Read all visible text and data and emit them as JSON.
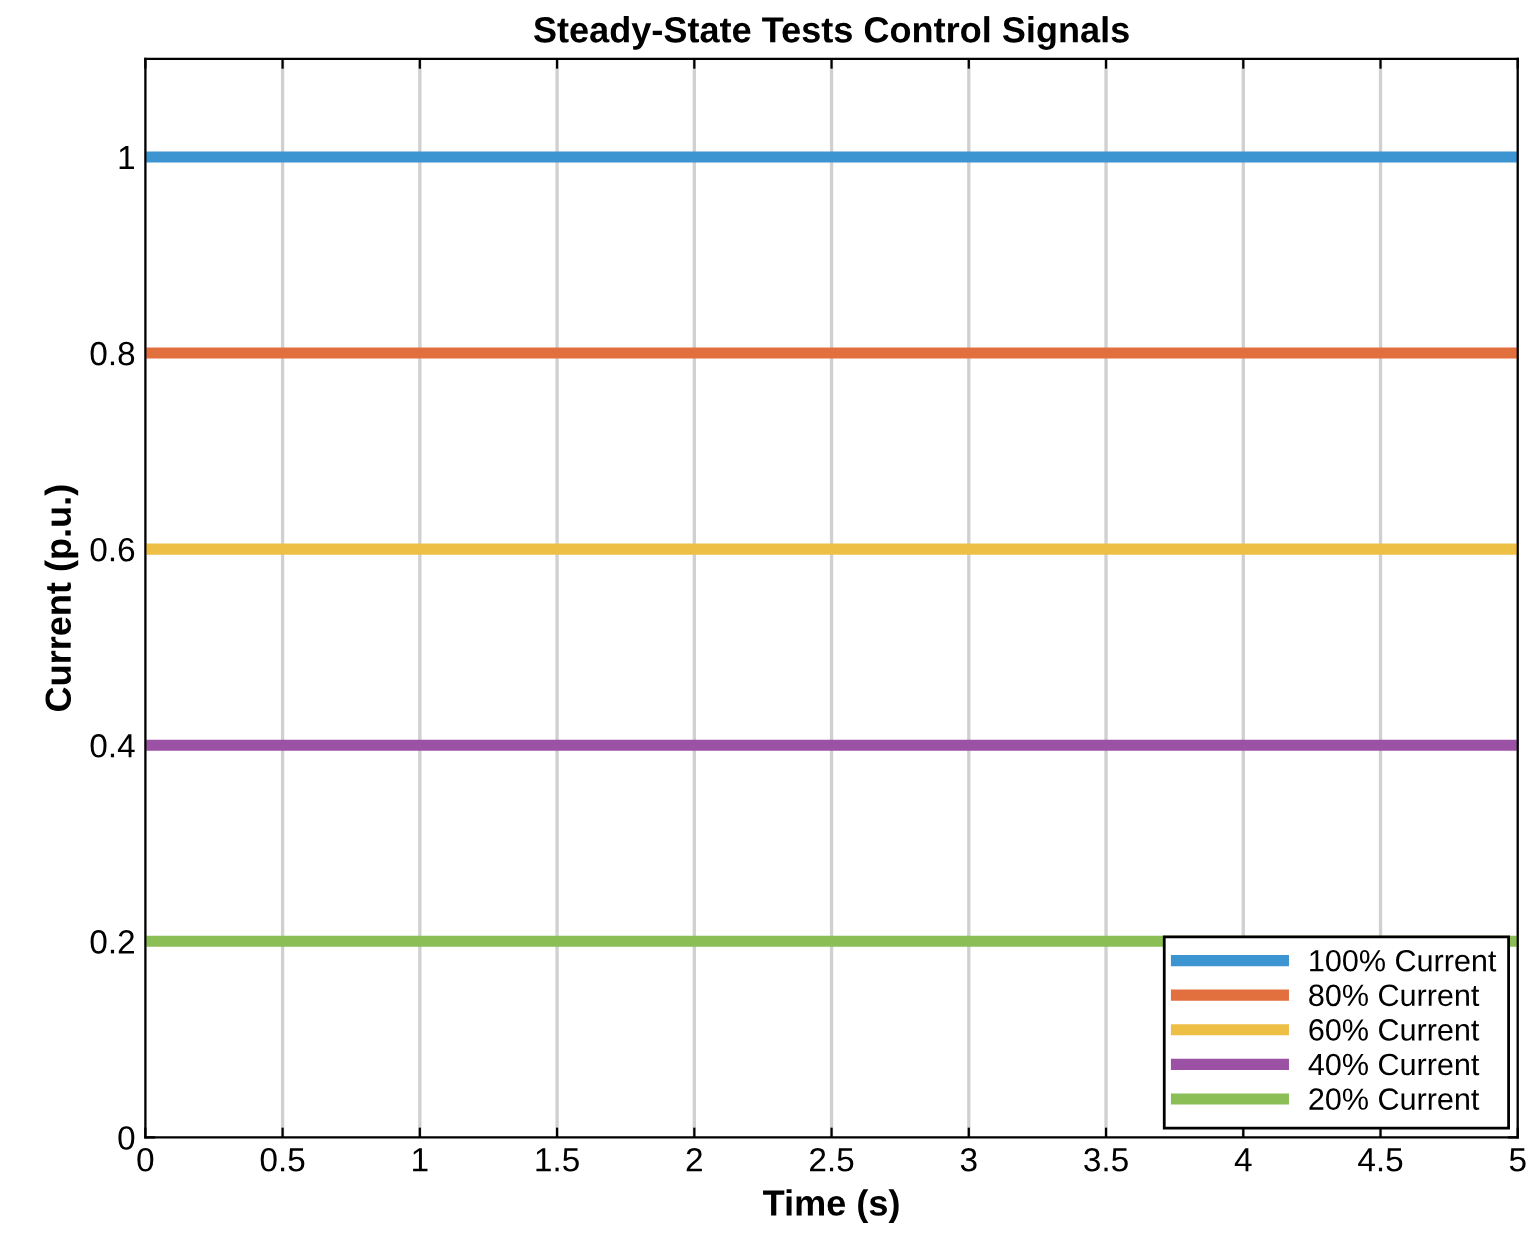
{
  "chart_data": {
    "type": "line",
    "title": "Steady-State Tests Control Signals",
    "xlabel": "Time (s)",
    "ylabel": "Current (p.u.)",
    "x": [
      0,
      5
    ],
    "series": [
      {
        "name": "100% Current",
        "color": "#3c94d0",
        "values": [
          1,
          1
        ]
      },
      {
        "name": "80% Current",
        "color": "#e2703f",
        "values": [
          0.8,
          0.8
        ]
      },
      {
        "name": "60% Current",
        "color": "#eebf45",
        "values": [
          0.6,
          0.6
        ]
      },
      {
        "name": "40% Current",
        "color": "#9b52a5",
        "values": [
          0.4,
          0.4
        ]
      },
      {
        "name": "20% Current",
        "color": "#8bbf55",
        "values": [
          0.2,
          0.2
        ]
      }
    ],
    "xlim": [
      0,
      5
    ],
    "xticks": [
      0,
      0.5,
      1,
      1.5,
      2,
      2.5,
      3,
      3.5,
      4,
      4.5,
      5
    ],
    "ylim": [
      0,
      1.1
    ],
    "yticks": [
      0,
      0.2,
      0.4,
      0.6,
      0.8,
      1
    ],
    "grid": "x",
    "legend": "bottom right",
    "line_style": "solid",
    "marker": "none"
  }
}
